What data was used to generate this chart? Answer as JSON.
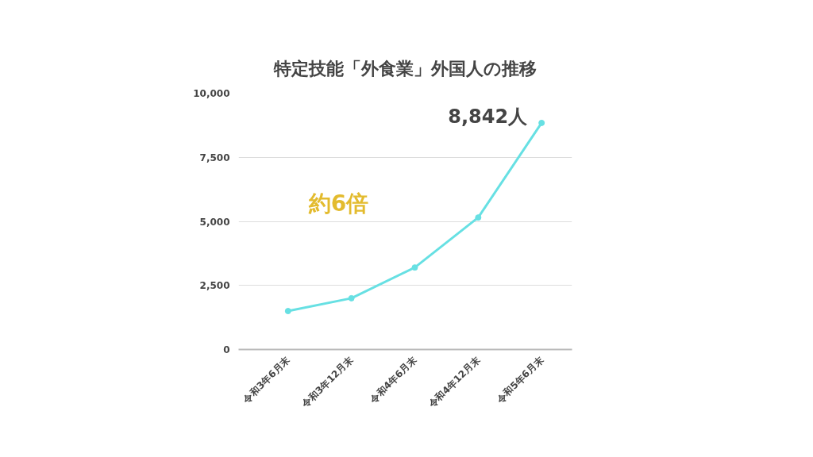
{
  "chart_data": {
    "type": "line",
    "title": "特定技能「外食業」外国人の推移",
    "categories": [
      "令和3年6月末",
      "令和3年12月末",
      "令和4年6月末",
      "令和4年12月末",
      "令和5年6月末"
    ],
    "series": [
      {
        "color": "#67e0e3",
        "values": [
          1500,
          2000,
          3200,
          5150,
          8842
        ]
      }
    ],
    "ylim": [
      0,
      10000
    ],
    "yticks": [
      {
        "value": 0,
        "label": "0"
      },
      {
        "value": 2500,
        "label": "2,500"
      },
      {
        "value": 5000,
        "label": "5,000"
      },
      {
        "value": 7500,
        "label": "7,500"
      },
      {
        "value": 10000,
        "label": "10,000"
      }
    ],
    "grid": "y",
    "marker": "circle",
    "line_style": "solid",
    "annotations": [
      {
        "text": "8,842人",
        "x": "令和5年6月末",
        "y": 8842
      },
      "約6倍"
    ]
  }
}
